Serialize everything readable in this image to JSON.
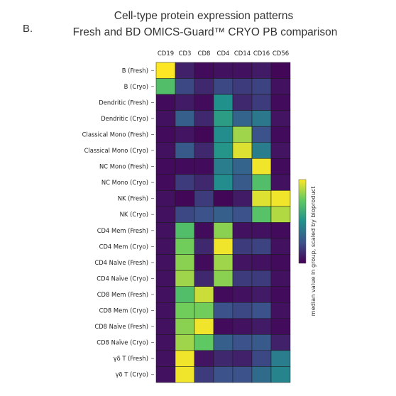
{
  "panel_label": "B.",
  "chart_data": {
    "type": "heatmap",
    "title": [
      "Cell-type protein expression patterns",
      "Fresh and BD OMICS-Guard™ CRYO PB comparison"
    ],
    "columns": [
      "CD19",
      "CD3",
      "CD8",
      "CD4",
      "CD14",
      "CD16",
      "CD56"
    ],
    "rows": [
      "B (Fresh)",
      "B (Cryo)",
      "Dendritic (Fresh)",
      "Dendritic (Cryo)",
      "Classical Mono (Fresh)",
      "Classical Mono (Cryo)",
      "NC Mono (Fresh)",
      "NC Mono (Cryo)",
      "NK (Fresh)",
      "NK (Cryo)",
      "CD4 Mem (Fresh)",
      "CD4 Mem (Cryo)",
      "CD4 Naïve (Fresh)",
      "CD4 Naïve (Cryo)",
      "CD8 Mem (Fresh)",
      "CD8 Mem (Cryo)",
      "CD8 Naïve (Fresh)",
      "CD8 Naïve (Cryo)",
      "γδ T (Fresh)",
      "γδ T (Cryo)"
    ],
    "values": [
      [
        1.0,
        0.1,
        0.03,
        0.05,
        0.05,
        0.08,
        0.02
      ],
      [
        0.7,
        0.22,
        0.12,
        0.22,
        0.18,
        0.2,
        0.05
      ],
      [
        0.03,
        0.08,
        0.03,
        0.5,
        0.12,
        0.18,
        0.03
      ],
      [
        0.05,
        0.3,
        0.12,
        0.55,
        0.32,
        0.4,
        0.06
      ],
      [
        0.03,
        0.06,
        0.02,
        0.48,
        0.85,
        0.25,
        0.03
      ],
      [
        0.05,
        0.28,
        0.12,
        0.52,
        0.95,
        0.42,
        0.06
      ],
      [
        0.03,
        0.03,
        0.03,
        0.42,
        0.32,
        0.98,
        0.03
      ],
      [
        0.03,
        0.18,
        0.12,
        0.48,
        0.28,
        0.7,
        0.05
      ],
      [
        0.05,
        0.02,
        0.18,
        0.02,
        0.08,
        0.95,
        0.98
      ],
      [
        0.05,
        0.22,
        0.25,
        0.3,
        0.25,
        0.72,
        0.88
      ],
      [
        0.05,
        0.7,
        0.03,
        0.82,
        0.05,
        0.05,
        0.03
      ],
      [
        0.05,
        0.78,
        0.12,
        0.98,
        0.18,
        0.2,
        0.05
      ],
      [
        0.05,
        0.82,
        0.03,
        0.85,
        0.06,
        0.05,
        0.03
      ],
      [
        0.05,
        0.85,
        0.12,
        0.82,
        0.18,
        0.18,
        0.05
      ],
      [
        0.05,
        0.7,
        0.92,
        0.03,
        0.05,
        0.08,
        0.03
      ],
      [
        0.05,
        0.78,
        0.78,
        0.25,
        0.22,
        0.25,
        0.05
      ],
      [
        0.05,
        0.82,
        0.98,
        0.03,
        0.05,
        0.08,
        0.03
      ],
      [
        0.05,
        0.85,
        0.75,
        0.3,
        0.25,
        0.28,
        0.1
      ],
      [
        0.05,
        0.98,
        0.06,
        0.12,
        0.1,
        0.22,
        0.42
      ],
      [
        0.05,
        0.98,
        0.18,
        0.25,
        0.25,
        0.35,
        0.45
      ]
    ],
    "colorscale": [
      "#440154",
      "#3b528b",
      "#21918c",
      "#5ec962",
      "#fde725"
    ],
    "colorbar_label": "median value in group, scaled by bioproduct",
    "grid": true
  }
}
